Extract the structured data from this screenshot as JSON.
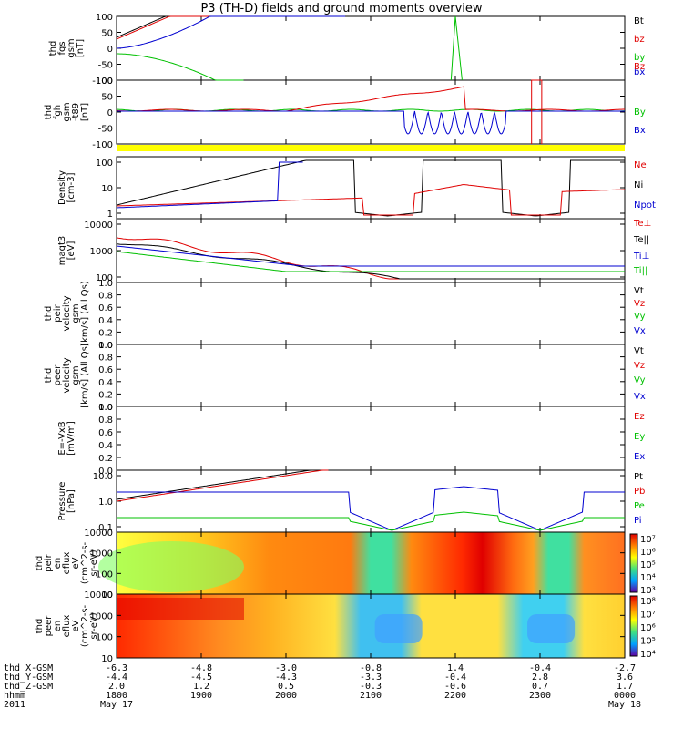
{
  "chart_data": {
    "title": "P3 (TH-D) fields and ground moments overview",
    "type": "line",
    "panels": [
      {
        "id": "fgs",
        "ylabel": [
          "thd",
          "fgs",
          "gsm",
          "[nT]"
        ],
        "ylim": [
          -100,
          100
        ],
        "yticks": [
          "100",
          "50",
          "0",
          "-50",
          "-100"
        ],
        "legend": [
          {
            "label": "Bt",
            "color": "#000000"
          },
          {
            "label": "bz",
            "color": "#e00000"
          },
          {
            "label": "by",
            "color": "#00c000"
          },
          {
            "label": "bx",
            "color": "#0000d0"
          }
        ]
      },
      {
        "id": "fgh",
        "ylabel": [
          "thd",
          "fgh",
          "gsm",
          "-t89",
          "[nT]"
        ],
        "ylim": [
          -120,
          120
        ],
        "yticks": [
          "100",
          "50",
          "0",
          "-50",
          "-100"
        ],
        "legend": [
          {
            "label": "Bz",
            "color": "#e00000"
          },
          {
            "label": "By",
            "color": "#00c000"
          },
          {
            "label": "Bx",
            "color": "#0000d0"
          }
        ]
      },
      {
        "id": "density",
        "ylabel": [
          "Density",
          "[cm-3]"
        ],
        "scale": "log",
        "yticks": [
          "100",
          "10",
          "1"
        ],
        "legend": [
          {
            "label": "Ne",
            "color": "#e00000"
          },
          {
            "label": "Ni",
            "color": "#000000"
          },
          {
            "label": "Npot",
            "color": "#0000d0"
          }
        ]
      },
      {
        "id": "temp",
        "ylabel": [
          "magt3",
          "[eV]"
        ],
        "scale": "log",
        "yticks": [
          "10000",
          "1000",
          "100"
        ],
        "legend": [
          {
            "label": "Te⊥",
            "color": "#e00000"
          },
          {
            "label": "Te||",
            "color": "#000000"
          },
          {
            "label": "Ti⊥",
            "color": "#0000d0"
          },
          {
            "label": "Ti||",
            "color": "#00c000"
          }
        ]
      },
      {
        "id": "vi",
        "ylabel": [
          "thd",
          "peir",
          "velocity",
          "gsm",
          "[km/s] (All Qs)"
        ],
        "yticks": [
          "1.0",
          "0.8",
          "0.6",
          "0.4",
          "0.2",
          "0.0"
        ],
        "legend": [
          {
            "label": "Vt",
            "color": "#000000"
          },
          {
            "label": "Vz",
            "color": "#e00000"
          },
          {
            "label": "Vy",
            "color": "#00c000"
          },
          {
            "label": "Vx",
            "color": "#0000d0"
          }
        ]
      },
      {
        "id": "ve",
        "ylabel": [
          "thd",
          "peer",
          "velocity",
          "gsm",
          "[km/s] (All Qs)"
        ],
        "yticks": [
          "1.0",
          "0.8",
          "0.6",
          "0.4",
          "0.2",
          "0.0"
        ],
        "legend": [
          {
            "label": "Vt",
            "color": "#000000"
          },
          {
            "label": "Vz",
            "color": "#e00000"
          },
          {
            "label": "Vy",
            "color": "#00c000"
          },
          {
            "label": "Vx",
            "color": "#0000d0"
          }
        ]
      },
      {
        "id": "efield",
        "ylabel": [
          "E=-VxB",
          "[mV/m]"
        ],
        "yticks": [
          "1.0",
          "0.8",
          "0.6",
          "0.4",
          "0.2",
          "0.0"
        ],
        "legend": [
          {
            "label": "Ez",
            "color": "#e00000"
          },
          {
            "label": "Ey",
            "color": "#00c000"
          },
          {
            "label": "Ex",
            "color": "#0000d0"
          }
        ]
      },
      {
        "id": "pressure",
        "ylabel": [
          "Pressure",
          "[nPa]"
        ],
        "scale": "log",
        "yticks": [
          "10.0",
          "1.0",
          "0.1"
        ],
        "legend": [
          {
            "label": "Pt",
            "color": "#000000"
          },
          {
            "label": "Pb",
            "color": "#e00000"
          },
          {
            "label": "Pe",
            "color": "#00c000"
          },
          {
            "label": "Pi",
            "color": "#0000d0"
          }
        ]
      },
      {
        "id": "ion_spec",
        "ylabel": [
          "thd",
          "peir",
          "en",
          "eflux",
          "eV",
          "(cm^2-s-",
          "sr-eV)"
        ],
        "type": "heatmap",
        "yticks": [
          "10000",
          "1000",
          "100",
          "10"
        ],
        "colorbar": [
          "10⁷",
          "10⁶",
          "10⁵",
          "10⁴",
          "10³"
        ]
      },
      {
        "id": "ele_spec",
        "ylabel": [
          "thd",
          "peer",
          "en",
          "eflux",
          "eV",
          "(cm^2-s-",
          "sr-eV)"
        ],
        "type": "heatmap",
        "yticks": [
          "10000",
          "1000",
          "100",
          "10"
        ],
        "colorbar": [
          "10⁸",
          "10⁷",
          "10⁶",
          "10⁵",
          "10⁴"
        ]
      }
    ],
    "x_axis": {
      "rows": [
        {
          "label": "thd_X-GSM",
          "values": [
            "-6.3",
            "-4.8",
            "-3.0",
            "-0.8",
            "1.4",
            "-0.4",
            "-2.7"
          ]
        },
        {
          "label": "thd_Y-GSM",
          "values": [
            "-4.4",
            "-4.5",
            "-4.3",
            "-3.3",
            "-0.4",
            "2.8",
            "3.6"
          ]
        },
        {
          "label": "thd_Z-GSM",
          "values": [
            "2.0",
            "1.2",
            "0.5",
            "-0.3",
            "-0.6",
            "0.7",
            "1.7"
          ]
        },
        {
          "label": "hhmm",
          "values": [
            "1800",
            "1900",
            "2000",
            "2100",
            "2200",
            "2300",
            "0000"
          ]
        }
      ],
      "year": "2011",
      "date_start": "May 17",
      "date_end": "May 18"
    }
  }
}
